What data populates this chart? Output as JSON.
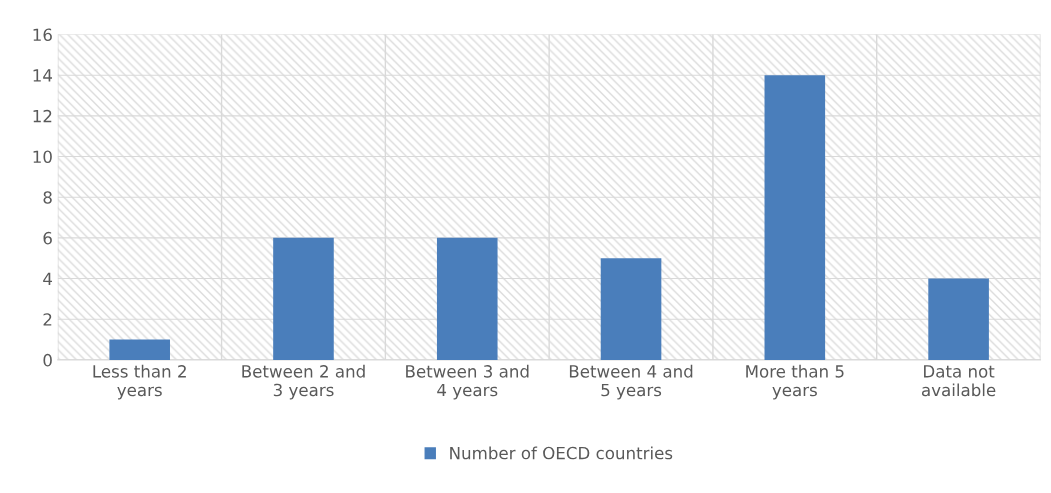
{
  "chart_data": {
    "type": "bar",
    "categories": [
      "Less than 2 years",
      "Between 2 and 3 years",
      "Between 3 and 4 years",
      "Between 4 and 5 years",
      "More than 5 years",
      "Data not available"
    ],
    "series": [
      {
        "name": "Number of OECD countries",
        "color": "#4a7ebb",
        "values": [
          1,
          6,
          6,
          5,
          14,
          4
        ]
      }
    ],
    "ylim": [
      0,
      16
    ],
    "yticks": [
      0,
      2,
      4,
      6,
      8,
      10,
      12,
      14,
      16
    ],
    "grid": true,
    "legend": "bottom"
  }
}
